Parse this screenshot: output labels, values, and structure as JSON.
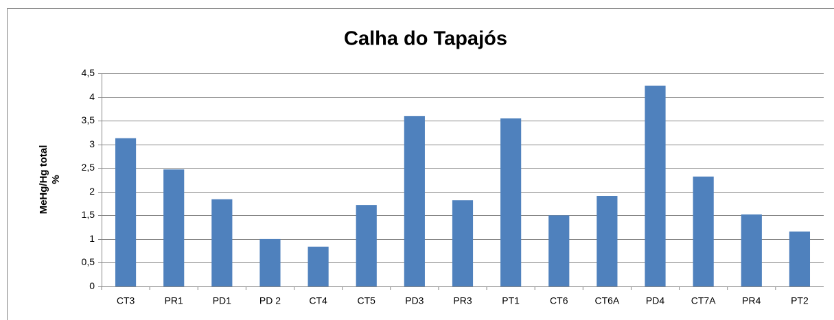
{
  "chart_data": {
    "type": "bar",
    "title": "Calha do Tapajós",
    "ylabel": [
      "MeHg/Hg total",
      "%"
    ],
    "categories": [
      "CT3",
      "PR1",
      "PD1",
      "PD 2",
      "CT4",
      "CT5",
      "PD3",
      "PR3",
      "PT1",
      "CT6",
      "CT6A",
      "PD4",
      "CT7A",
      "PR4",
      "PT2"
    ],
    "values": [
      3.13,
      2.47,
      1.84,
      1.0,
      0.84,
      1.72,
      3.6,
      1.82,
      3.55,
      1.5,
      1.91,
      4.24,
      2.32,
      1.52,
      1.16
    ],
    "color": "#4f81bd",
    "ylim": [
      0,
      4.5
    ],
    "yticks": [
      0,
      {
        "value": 0.5,
        "label": "0,5"
      },
      1,
      {
        "value": 1.5,
        "label": "1,5"
      },
      2,
      {
        "value": 2.5,
        "label": "2,5"
      },
      3,
      {
        "value": 3.5,
        "label": "3,5"
      },
      4,
      {
        "value": 4.5,
        "label": "4,5"
      }
    ],
    "grid": true
  }
}
